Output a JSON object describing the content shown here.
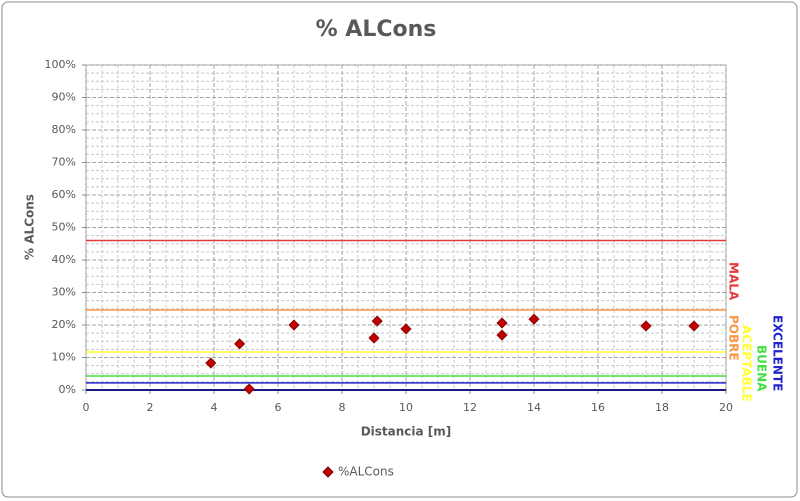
{
  "chart_data": {
    "type": "scatter",
    "title": "% ALCons",
    "x_label": "Distancia [m]",
    "y_label": "% ALCons",
    "xlim": [
      0,
      20
    ],
    "xticks": [
      0,
      2,
      4,
      6,
      8,
      10,
      12,
      14,
      16,
      18,
      20
    ],
    "ylim": [
      0,
      100
    ],
    "yticks": [
      {
        "value": 0,
        "label": "0%"
      },
      {
        "value": 10,
        "label": "10%"
      },
      {
        "value": 20,
        "label": "20%"
      },
      {
        "value": 30,
        "label": "30%"
      },
      {
        "value": 40,
        "label": "40%"
      },
      {
        "value": 50,
        "label": "50%"
      },
      {
        "value": 60,
        "label": "60%"
      },
      {
        "value": 70,
        "label": "70%"
      },
      {
        "value": 80,
        "label": "80%"
      },
      {
        "value": 90,
        "label": "90%"
      },
      {
        "value": 100,
        "label": "100%"
      }
    ],
    "grid": true,
    "series": [
      {
        "name": "%ALCons",
        "color": "#c00000",
        "x": [
          3.9,
          4.8,
          5.1,
          6.5,
          9.0,
          9.1,
          10.0,
          13.0,
          13.0,
          14.0,
          17.5,
          19.0
        ],
        "values": [
          8.3,
          14.2,
          0.3,
          20.0,
          16.0,
          21.2,
          18.8,
          20.6,
          16.9,
          21.8,
          19.7,
          19.7
        ]
      }
    ],
    "reference_lines": [
      {
        "label": "MALA",
        "value": 46,
        "color": "#e03a3a"
      },
      {
        "label": "POBRE",
        "value": 24.6,
        "color": "#f79646"
      },
      {
        "label": "ACEPTABLE",
        "value": 11.7,
        "color": "#ffff33"
      },
      {
        "label": "BUENA",
        "value": 4.3,
        "color": "#44dd44"
      },
      {
        "label": "EXCELENTE",
        "value": 2.2,
        "color": "#2222cc"
      }
    ]
  }
}
